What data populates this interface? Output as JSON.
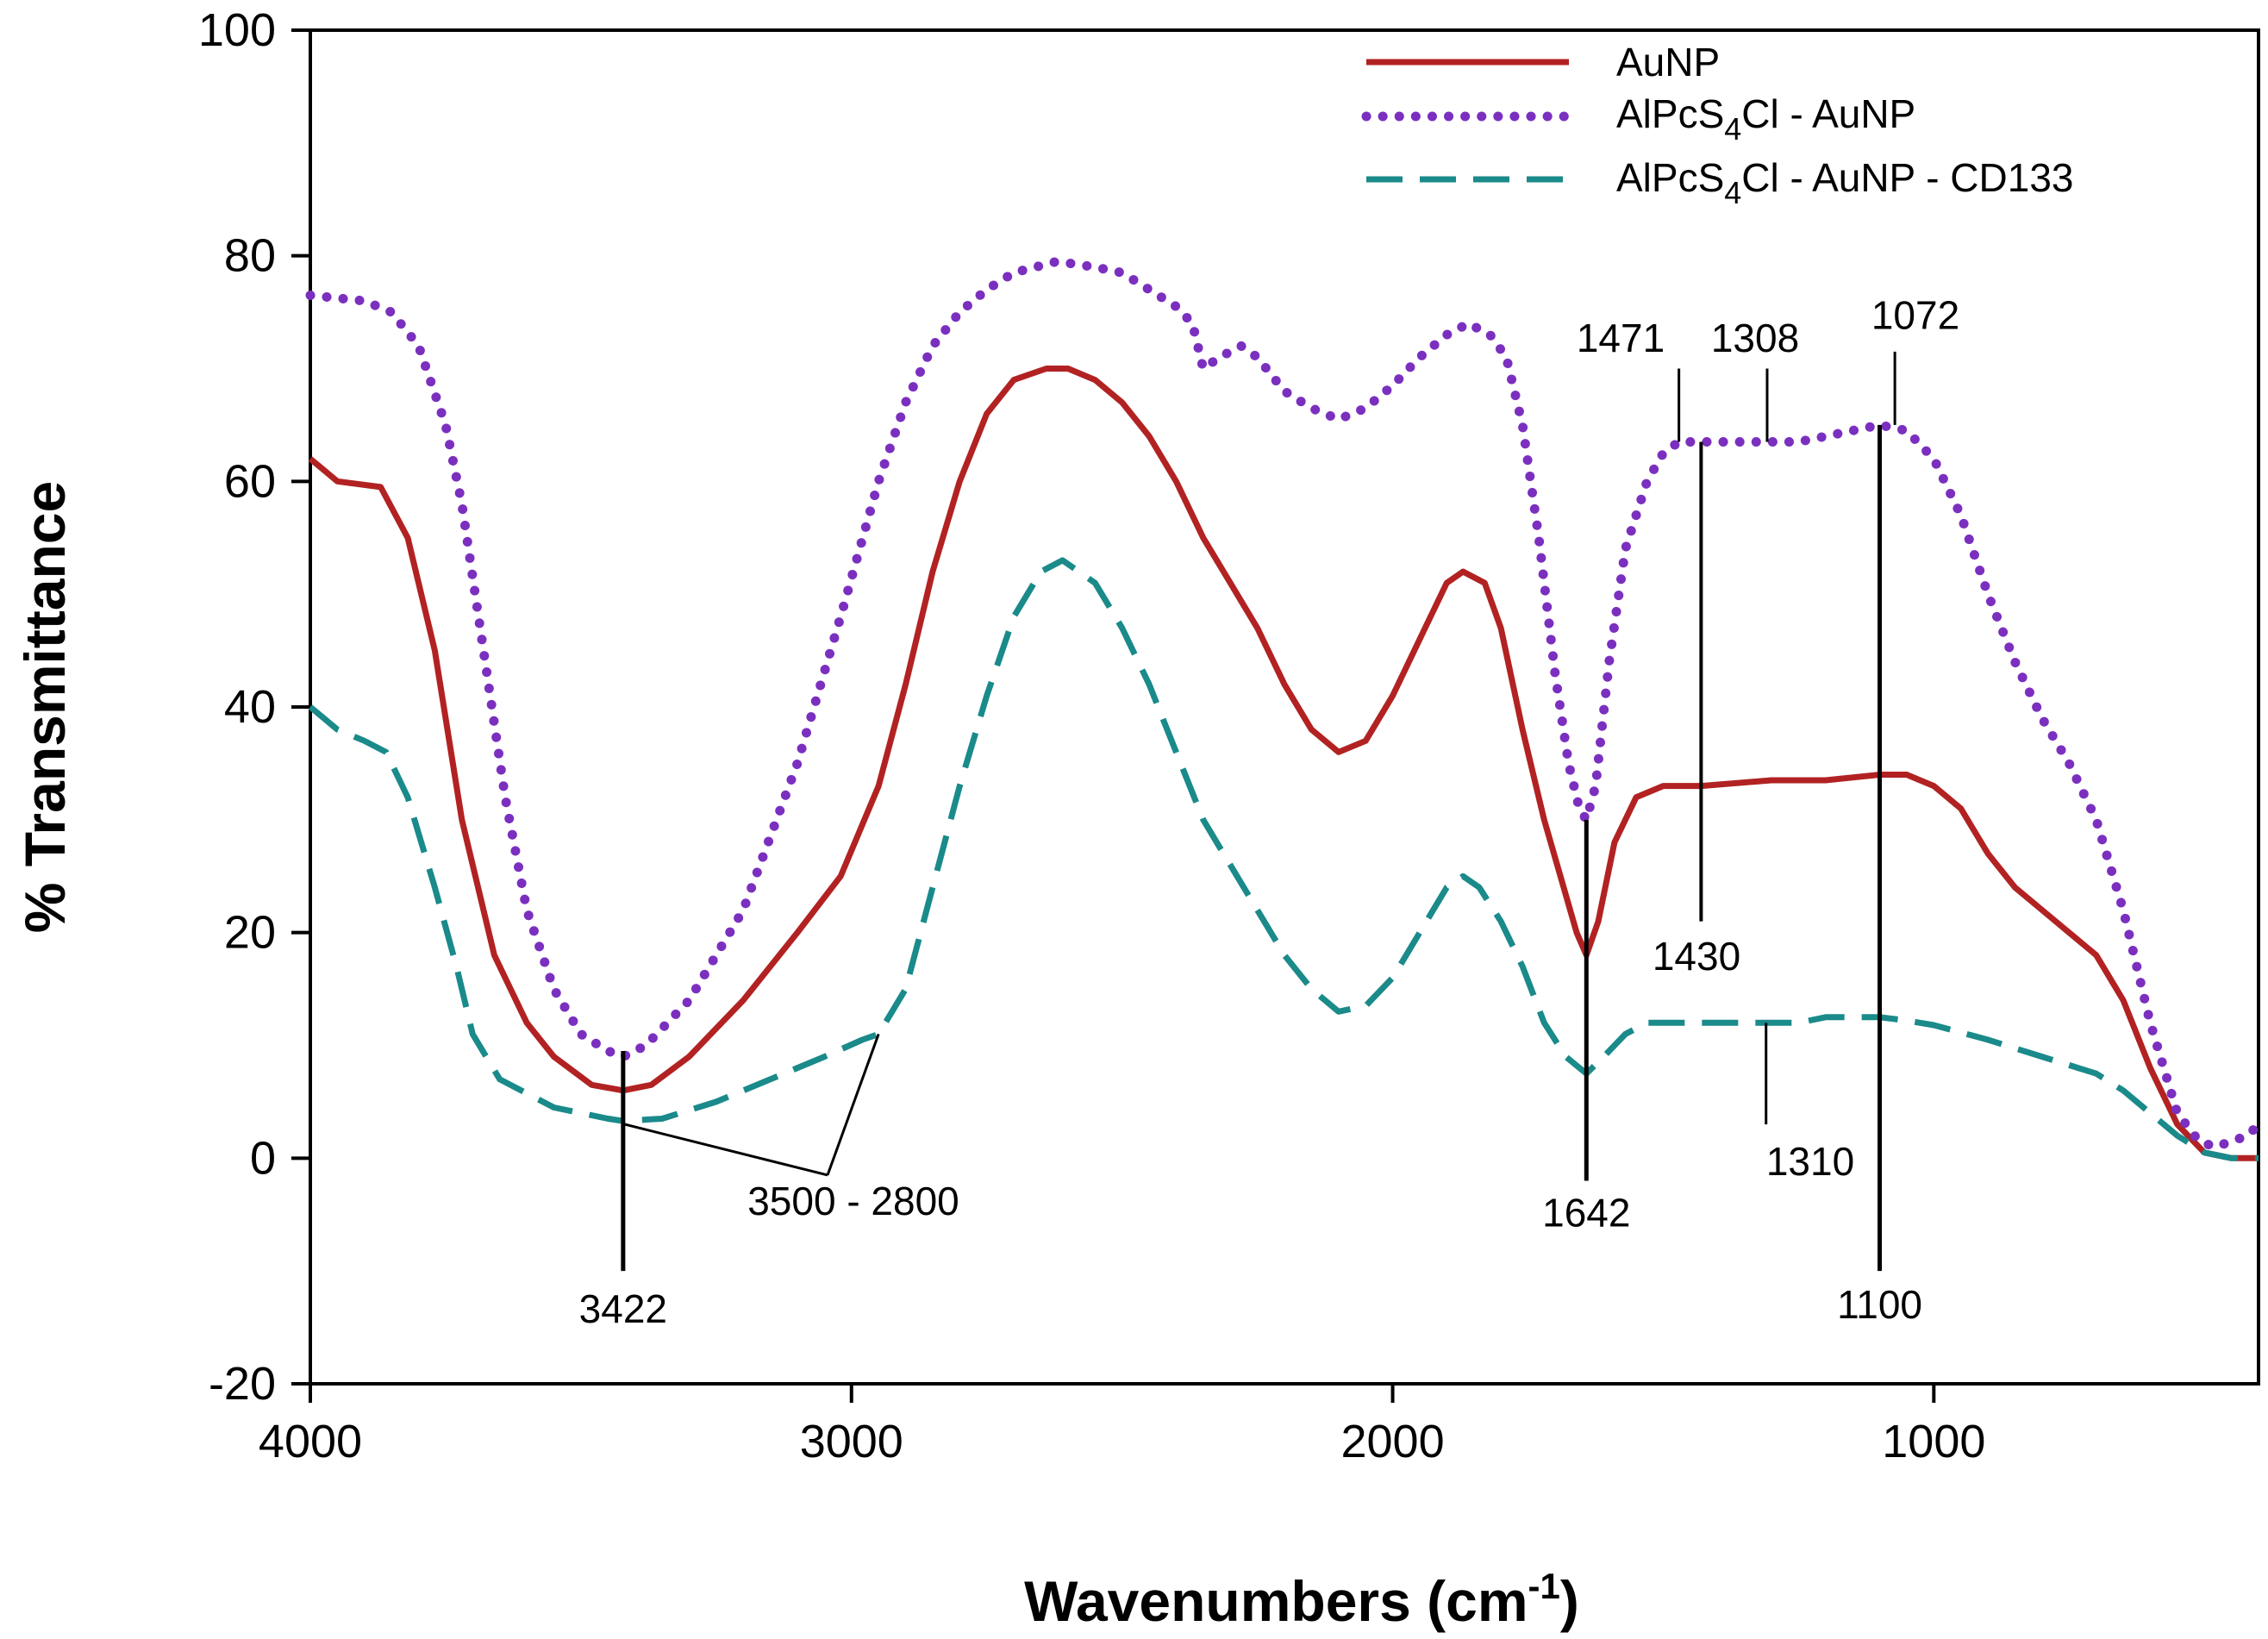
{
  "chart_data": {
    "type": "line",
    "title": "",
    "xlabel": "Wavenumbers (cm",
    "xlabel_sup": "-1",
    "xlabel_end": ")",
    "ylabel": "% Transmittance",
    "xlim": [
      4000,
      400
    ],
    "ylim": [
      -20,
      100
    ],
    "x_ticks": [
      "4000",
      "3000",
      "2000",
      "1000"
    ],
    "y_ticks": [
      "100",
      "80",
      "60",
      "40",
      "20",
      "0",
      "-20"
    ],
    "series": [
      {
        "name": "AuNP",
        "color": "#b22222",
        "style": "solid",
        "points": [
          [
            4000,
            62
          ],
          [
            3950,
            60
          ],
          [
            3870,
            59.5
          ],
          [
            3820,
            55
          ],
          [
            3770,
            45
          ],
          [
            3720,
            30
          ],
          [
            3660,
            18
          ],
          [
            3600,
            12
          ],
          [
            3550,
            9
          ],
          [
            3480,
            6.5
          ],
          [
            3422,
            6
          ],
          [
            3370,
            6.5
          ],
          [
            3300,
            9
          ],
          [
            3200,
            14
          ],
          [
            3100,
            20
          ],
          [
            3020,
            25
          ],
          [
            2950,
            33
          ],
          [
            2900,
            42
          ],
          [
            2850,
            52
          ],
          [
            2800,
            60
          ],
          [
            2750,
            66
          ],
          [
            2700,
            69
          ],
          [
            2640,
            70
          ],
          [
            2600,
            70
          ],
          [
            2550,
            69
          ],
          [
            2500,
            67
          ],
          [
            2450,
            64
          ],
          [
            2400,
            60
          ],
          [
            2350,
            55
          ],
          [
            2300,
            51
          ],
          [
            2250,
            47
          ],
          [
            2200,
            42
          ],
          [
            2150,
            38
          ],
          [
            2100,
            36
          ],
          [
            2050,
            37
          ],
          [
            2000,
            41
          ],
          [
            1950,
            46
          ],
          [
            1900,
            51
          ],
          [
            1870,
            52
          ],
          [
            1830,
            51
          ],
          [
            1800,
            47
          ],
          [
            1760,
            38
          ],
          [
            1720,
            30
          ],
          [
            1690,
            25
          ],
          [
            1660,
            20
          ],
          [
            1642,
            18
          ],
          [
            1620,
            21
          ],
          [
            1590,
            28
          ],
          [
            1550,
            32
          ],
          [
            1500,
            33
          ],
          [
            1430,
            33
          ],
          [
            1300,
            33.5
          ],
          [
            1200,
            33.5
          ],
          [
            1100,
            34
          ],
          [
            1050,
            34
          ],
          [
            1000,
            33
          ],
          [
            950,
            31
          ],
          [
            900,
            27
          ],
          [
            850,
            24
          ],
          [
            800,
            22
          ],
          [
            750,
            20
          ],
          [
            700,
            18
          ],
          [
            650,
            14
          ],
          [
            600,
            8
          ],
          [
            550,
            3
          ],
          [
            500,
            0.5
          ],
          [
            450,
            0
          ],
          [
            400,
            0
          ]
        ]
      },
      {
        "name": "AlPcS",
        "name_sub": "4",
        "name_end": "Cl - AuNP",
        "color": "#7b2fbf",
        "style": "dotted",
        "points": [
          [
            4000,
            76.5
          ],
          [
            3900,
            76
          ],
          [
            3850,
            75
          ],
          [
            3800,
            72
          ],
          [
            3750,
            65
          ],
          [
            3720,
            58
          ],
          [
            3680,
            45
          ],
          [
            3640,
            32
          ],
          [
            3600,
            22
          ],
          [
            3550,
            15
          ],
          [
            3500,
            11
          ],
          [
            3450,
            9.5
          ],
          [
            3422,
            9
          ],
          [
            3380,
            10
          ],
          [
            3300,
            14
          ],
          [
            3200,
            22
          ],
          [
            3100,
            35
          ],
          [
            3020,
            48
          ],
          [
            2950,
            60
          ],
          [
            2900,
            67
          ],
          [
            2850,
            72
          ],
          [
            2800,
            75
          ],
          [
            2750,
            77
          ],
          [
            2700,
            78.5
          ],
          [
            2620,
            79.5
          ],
          [
            2550,
            79
          ],
          [
            2500,
            78.5
          ],
          [
            2450,
            77
          ],
          [
            2400,
            75.5
          ],
          [
            2370,
            74
          ],
          [
            2350,
            70
          ],
          [
            2320,
            71
          ],
          [
            2280,
            72
          ],
          [
            2250,
            71
          ],
          [
            2200,
            68
          ],
          [
            2150,
            66.5
          ],
          [
            2100,
            65.5
          ],
          [
            2050,
            66.5
          ],
          [
            2000,
            68.5
          ],
          [
            1950,
            71
          ],
          [
            1900,
            73
          ],
          [
            1860,
            74
          ],
          [
            1820,
            73
          ],
          [
            1790,
            71
          ],
          [
            1760,
            65
          ],
          [
            1730,
            55
          ],
          [
            1700,
            43
          ],
          [
            1675,
            35
          ],
          [
            1655,
            31
          ],
          [
            1642,
            30
          ],
          [
            1625,
            33
          ],
          [
            1600,
            44
          ],
          [
            1570,
            54
          ],
          [
            1530,
            60
          ],
          [
            1500,
            62.5
          ],
          [
            1471,
            63.5
          ],
          [
            1400,
            63.5
          ],
          [
            1308,
            63.5
          ],
          [
            1250,
            63.5
          ],
          [
            1200,
            64
          ],
          [
            1100,
            65
          ],
          [
            1050,
            64.5
          ],
          [
            1000,
            62
          ],
          [
            950,
            57
          ],
          [
            900,
            50
          ],
          [
            850,
            44
          ],
          [
            800,
            39
          ],
          [
            750,
            35
          ],
          [
            700,
            30
          ],
          [
            650,
            22
          ],
          [
            600,
            12
          ],
          [
            550,
            4
          ],
          [
            510,
            1.5
          ],
          [
            480,
            1
          ],
          [
            450,
            1.5
          ],
          [
            420,
            2
          ],
          [
            400,
            3
          ]
        ]
      },
      {
        "name": "AlPcS",
        "name_sub": "4",
        "name_end": "Cl - AuNP - CD133",
        "color": "#1a8a8a",
        "style": "dashed",
        "points": [
          [
            4000,
            40
          ],
          [
            3950,
            38
          ],
          [
            3900,
            37
          ],
          [
            3860,
            36
          ],
          [
            3820,
            32
          ],
          [
            3770,
            24
          ],
          [
            3730,
            17
          ],
          [
            3700,
            11
          ],
          [
            3650,
            7
          ],
          [
            3550,
            4.5
          ],
          [
            3450,
            3.5
          ],
          [
            3422,
            3.3
          ],
          [
            3350,
            3.5
          ],
          [
            3250,
            5
          ],
          [
            3150,
            7
          ],
          [
            3050,
            9
          ],
          [
            2980,
            10.5
          ],
          [
            2950,
            11
          ],
          [
            2900,
            15
          ],
          [
            2850,
            24
          ],
          [
            2800,
            33
          ],
          [
            2750,
            41
          ],
          [
            2700,
            48
          ],
          [
            2650,
            52
          ],
          [
            2610,
            53
          ],
          [
            2550,
            51
          ],
          [
            2500,
            47
          ],
          [
            2450,
            42
          ],
          [
            2400,
            36
          ],
          [
            2350,
            30
          ],
          [
            2300,
            26
          ],
          [
            2250,
            22
          ],
          [
            2200,
            18
          ],
          [
            2150,
            15
          ],
          [
            2100,
            13
          ],
          [
            2050,
            13.5
          ],
          [
            2000,
            16
          ],
          [
            1950,
            20
          ],
          [
            1900,
            24
          ],
          [
            1870,
            25
          ],
          [
            1840,
            24
          ],
          [
            1800,
            21
          ],
          [
            1760,
            17
          ],
          [
            1720,
            12
          ],
          [
            1680,
            9
          ],
          [
            1642,
            7.5
          ],
          [
            1610,
            9
          ],
          [
            1570,
            11
          ],
          [
            1530,
            12
          ],
          [
            1430,
            12
          ],
          [
            1310,
            12
          ],
          [
            1250,
            12
          ],
          [
            1200,
            12.5
          ],
          [
            1100,
            12.5
          ],
          [
            1050,
            12.2
          ],
          [
            1000,
            11.8
          ],
          [
            900,
            10.5
          ],
          [
            800,
            9
          ],
          [
            700,
            7.5
          ],
          [
            650,
            6
          ],
          [
            600,
            4
          ],
          [
            550,
            2
          ],
          [
            500,
            0.5
          ],
          [
            450,
            0
          ],
          [
            400,
            0
          ]
        ]
      }
    ],
    "annotations": [
      {
        "label": "3422"
      },
      {
        "label": "3500 - 2800"
      },
      {
        "label": "1642"
      },
      {
        "label": "1471"
      },
      {
        "label": "1308"
      },
      {
        "label": "1430"
      },
      {
        "label": "1072"
      },
      {
        "label": "1100"
      },
      {
        "label": "1310"
      }
    ],
    "legend_position": "top-right"
  }
}
